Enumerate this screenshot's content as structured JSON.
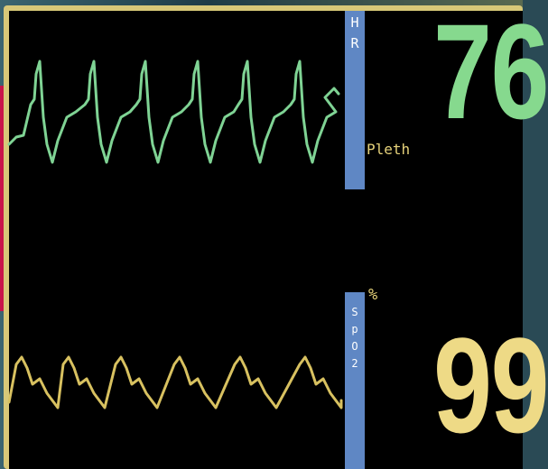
{
  "monitor": {
    "hr_bar_label": [
      "H",
      "R"
    ],
    "spo2_bar_label": [
      "S",
      "p",
      "O",
      "2"
    ],
    "pleth_label": "Pleth",
    "percent_label": "%",
    "hr_value": "76",
    "spo2_value": "99",
    "colors": {
      "ecg_trace": "#7fd394",
      "pleth_trace": "#d8c160",
      "hr_value": "#86d98e",
      "spo2_value": "#eeda86",
      "label_bar": "#5f87c4",
      "screen": "#000000",
      "bezel": "#d8c878"
    }
  }
}
